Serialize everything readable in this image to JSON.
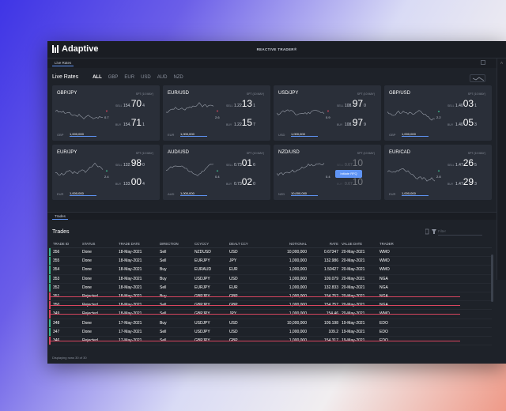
{
  "app": {
    "brand": "Adaptive",
    "title": "REACTIVE TRADER®"
  },
  "live_rates_tab": "Live Rates",
  "right_edge_label": "A",
  "rates": {
    "title": "Live Rates",
    "filters": [
      "ALL",
      "GBP",
      "EUR",
      "USD",
      "AUD",
      "NZD"
    ],
    "active_filter": "ALL"
  },
  "tiles": [
    {
      "pair": "GBP/JPY",
      "spt": "SPT (10 MAY)",
      "sell_label": "SELL",
      "buy_label": "BUY",
      "sell_small": "154.",
      "sell_big": "70",
      "sell_pip": "4",
      "buy_small": "154.",
      "buy_big": "71",
      "buy_pip": "1",
      "spread": "0.7",
      "dir": "down",
      "ccy": "GBP",
      "notional": "1,000,000"
    },
    {
      "pair": "EUR/USD",
      "spt": "SPT (10 MAY)",
      "sell_label": "SELL",
      "buy_label": "BUY",
      "sell_small": "1.22",
      "sell_big": "13",
      "sell_pip": "1",
      "buy_small": "1.22",
      "buy_big": "15",
      "buy_pip": "7",
      "spread": "2.6",
      "dir": "down",
      "ccy": "EUR",
      "notional": "1,000,000"
    },
    {
      "pair": "USD/JPY",
      "spt": "SPT (10 MAY)",
      "sell_label": "SELL",
      "buy_label": "BUY",
      "sell_small": "108.",
      "sell_big": "97",
      "sell_pip": "0",
      "buy_small": "108.",
      "buy_big": "97",
      "buy_pip": "9",
      "spread": "0.9",
      "dir": "down",
      "ccy": "USD",
      "notional": "1,000,000"
    },
    {
      "pair": "GBP/USD",
      "spt": "SPT (10 MAY)",
      "sell_label": "SELL",
      "buy_label": "BUY",
      "sell_small": "1.40",
      "sell_big": "03",
      "sell_pip": "1",
      "buy_small": "1.40",
      "buy_big": "05",
      "buy_pip": "3",
      "spread": "2.2",
      "dir": "up",
      "ccy": "GBP",
      "notional": "1,000,000"
    },
    {
      "pair": "EUR/JPY",
      "spt": "SPT (10 MAY)",
      "sell_label": "SELL",
      "buy_label": "BUY",
      "sell_small": "132.",
      "sell_big": "98",
      "sell_pip": "0",
      "buy_small": "133.",
      "buy_big": "00",
      "buy_pip": "4",
      "spread": "2.4",
      "dir": "up",
      "ccy": "EUR",
      "notional": "1,000,000"
    },
    {
      "pair": "AUD/USD",
      "spt": "SPT (10 MAY)",
      "sell_label": "SELL",
      "buy_label": "BUY",
      "sell_small": "0.73",
      "sell_big": "01",
      "sell_pip": "6",
      "buy_small": "0.73",
      "buy_big": "02",
      "buy_pip": "0",
      "spread": "0.4",
      "dir": "up",
      "ccy": "AUD",
      "notional": "1,000,000"
    },
    {
      "pair": "NZD/USD",
      "spt": "SPT (10 MAY)",
      "sell_label": "SELL",
      "buy_label": "BUY",
      "sell_small": "0.67",
      "sell_big": "10",
      "sell_pip": "",
      "buy_small": "0.67",
      "buy_big": "10",
      "buy_pip": "",
      "spread": "0.4",
      "dir": "",
      "ccy": "NZD",
      "notional": "10,000,000",
      "rfq": "Initiate RFQ"
    },
    {
      "pair": "EUR/CAD",
      "spt": "SPT (10 MAY)",
      "sell_label": "SELL",
      "buy_label": "BUY",
      "sell_small": "1.47",
      "sell_big": "26",
      "sell_pip": "5",
      "buy_small": "1.47",
      "buy_big": "29",
      "buy_pip": "3",
      "spread": "2.8",
      "dir": "up",
      "ccy": "EUR",
      "notional": "1,000,000"
    }
  ],
  "trades_tab": "Trades",
  "trades": {
    "title": "Trades",
    "filter_placeholder": "Filter",
    "columns": [
      "TRADE ID",
      "STATUS",
      "TRADE DATE",
      "DIRECTION",
      "CCYCCY",
      "DEALT CCY",
      "NOTIONAL",
      "RATE",
      "VALUE DATE",
      "TRADER"
    ],
    "rows": [
      [
        "356",
        "Done",
        "18-May-2021",
        "Sell",
        "NZDUSD",
        "USD",
        "10,000,000",
        "0.67347",
        "20-May-2021",
        "WMO"
      ],
      [
        "355",
        "Done",
        "18-May-2021",
        "Sell",
        "EURJPY",
        "JPY",
        "1,000,000",
        "132.986",
        "20-May-2021",
        "WMO"
      ],
      [
        "354",
        "Done",
        "18-May-2021",
        "Buy",
        "EURAUD",
        "EUR",
        "1,000,000",
        "1.50427",
        "20-May-2021",
        "WMO"
      ],
      [
        "353",
        "Done",
        "18-May-2021",
        "Buy",
        "USDJPY",
        "USD",
        "1,000,000",
        "109.079",
        "20-May-2021",
        "NGA"
      ],
      [
        "352",
        "Done",
        "18-May-2021",
        "Sell",
        "EURJPY",
        "EUR",
        "1,000,000",
        "132.833",
        "20-May-2021",
        "NGA"
      ],
      [
        "351",
        "Rejected",
        "18-May-2021",
        "Buy",
        "GBPJPY",
        "GBP",
        "1,000,000",
        "154.752",
        "20-May-2021",
        "NGA"
      ],
      [
        "350",
        "Rejected",
        "18-May-2021",
        "Sell",
        "GBPJPY",
        "GBP",
        "1,000,000",
        "154.757",
        "20-May-2021",
        "NGA"
      ],
      [
        "349",
        "Rejected",
        "18-May-2021",
        "Sell",
        "GBPJPY",
        "JPY",
        "1,000,000",
        "154.46",
        "20-May-2021",
        "WMO"
      ],
      [
        "348",
        "Done",
        "17-May-2021",
        "Buy",
        "USDJPY",
        "USD",
        "10,000,000",
        "109.198",
        "19-May-2021",
        "EDO"
      ],
      [
        "347",
        "Done",
        "17-May-2021",
        "Sell",
        "USDJPY",
        "USD",
        "1,000,000",
        "109.2",
        "19-May-2021",
        "EDO"
      ],
      [
        "346",
        "Rejected",
        "17-May-2021",
        "Sell",
        "GBPJPY",
        "GBP",
        "1,000,000",
        "154.317",
        "19-May-2021",
        "EDO"
      ]
    ],
    "footer": "Displaying rows 30 of 30"
  },
  "colors": {
    "accent": "#5f94f5",
    "done": "#3bb58b",
    "rejected": "#d9455f",
    "up": "#3bb58b",
    "down": "#d9455f"
  }
}
